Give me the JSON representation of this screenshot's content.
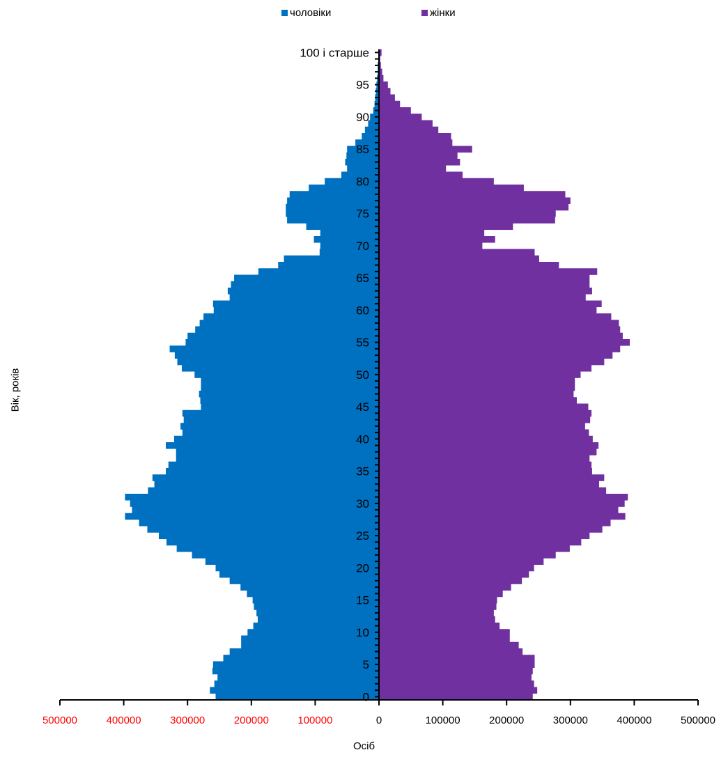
{
  "chart_data": {
    "type": "bar",
    "orientation": "horizontal-population-pyramid",
    "legend": [
      {
        "name": "чоловіки",
        "color": "#0070C0"
      },
      {
        "name": "жінки",
        "color": "#7030A0"
      }
    ],
    "legend_position": "top",
    "xlabel": "Осіб",
    "ylabel": "Вік, років",
    "xlim": [
      -500000,
      500000
    ],
    "x_ticks": [
      -500000,
      -400000,
      -300000,
      -200000,
      -100000,
      0,
      100000,
      200000,
      300000,
      400000,
      500000
    ],
    "x_tick_labels": [
      "500000",
      "400000",
      "300000",
      "200000",
      "100000",
      "0",
      "100000",
      "200000",
      "300000",
      "400000",
      "500000"
    ],
    "negative_tick_color": "#FF0000",
    "y_ticks": [
      0,
      5,
      10,
      15,
      20,
      25,
      30,
      35,
      40,
      45,
      50,
      55,
      60,
      65,
      70,
      75,
      80,
      85,
      90,
      95,
      100
    ],
    "y_tick_labels": [
      "0",
      "5",
      "10",
      "15",
      "20",
      "25",
      "30",
      "35",
      "40",
      "45",
      "50",
      "55",
      "60",
      "65",
      "70",
      "75",
      "80",
      "85",
      "90",
      "95",
      "100 і старше"
    ],
    "categories": [
      0,
      1,
      2,
      3,
      4,
      5,
      6,
      7,
      8,
      9,
      10,
      11,
      12,
      13,
      14,
      15,
      16,
      17,
      18,
      19,
      20,
      21,
      22,
      23,
      24,
      25,
      26,
      27,
      28,
      29,
      30,
      31,
      32,
      33,
      34,
      35,
      36,
      37,
      38,
      39,
      40,
      41,
      42,
      43,
      44,
      45,
      46,
      47,
      48,
      49,
      50,
      51,
      52,
      53,
      54,
      55,
      56,
      57,
      58,
      59,
      60,
      61,
      62,
      63,
      64,
      65,
      66,
      67,
      68,
      69,
      70,
      71,
      72,
      73,
      74,
      75,
      76,
      77,
      78,
      79,
      80,
      81,
      82,
      83,
      84,
      85,
      86,
      87,
      88,
      89,
      90,
      91,
      92,
      93,
      94,
      95,
      96,
      97,
      98,
      99,
      100
    ],
    "series": [
      {
        "name": "чоловіки",
        "values": [
          256000,
          265000,
          258000,
          253000,
          261000,
          260000,
          244000,
          234000,
          216000,
          216000,
          206000,
          197000,
          190000,
          192000,
          196000,
          198000,
          207000,
          217000,
          234000,
          250000,
          256000,
          272000,
          293000,
          317000,
          333000,
          345000,
          363000,
          376000,
          398000,
          387000,
          390000,
          398000,
          362000,
          352000,
          355000,
          334000,
          330000,
          318000,
          318000,
          334000,
          321000,
          308000,
          311000,
          306000,
          308000,
          279000,
          280000,
          282000,
          279000,
          279000,
          289000,
          309000,
          316000,
          320000,
          328000,
          303000,
          300000,
          288000,
          281000,
          275000,
          259000,
          260000,
          234000,
          237000,
          232000,
          227000,
          189000,
          158000,
          149000,
          93000,
          92000,
          102000,
          92000,
          114000,
          144000,
          146000,
          146000,
          144000,
          140000,
          110000,
          85000,
          59000,
          50000,
          53000,
          51000,
          50000,
          37000,
          27000,
          22000,
          17000,
          14000,
          9000,
          7000,
          6000,
          5000,
          4000,
          3000,
          2000,
          2000,
          1000,
          1000
        ]
      },
      {
        "name": "жінки",
        "values": [
          241000,
          248000,
          243000,
          239000,
          241000,
          244000,
          244000,
          225000,
          219000,
          205000,
          205000,
          189000,
          182000,
          180000,
          184000,
          185000,
          194000,
          207000,
          224000,
          235000,
          243000,
          258000,
          277000,
          299000,
          317000,
          330000,
          350000,
          363000,
          386000,
          375000,
          385000,
          390000,
          356000,
          345000,
          353000,
          334000,
          333000,
          330000,
          341000,
          344000,
          335000,
          329000,
          323000,
          331000,
          333000,
          328000,
          310000,
          305000,
          307000,
          307000,
          316000,
          333000,
          353000,
          366000,
          378000,
          393000,
          382000,
          378000,
          376000,
          364000,
          341000,
          349000,
          324000,
          334000,
          330000,
          330000,
          342000,
          282000,
          251000,
          244000,
          162000,
          182000,
          165000,
          210000,
          276000,
          277000,
          297000,
          300000,
          292000,
          227000,
          180000,
          131000,
          105000,
          127000,
          123000,
          146000,
          115000,
          113000,
          93000,
          84000,
          67000,
          50000,
          33000,
          25000,
          18000,
          14000,
          7000,
          5000,
          3000,
          2000,
          4000
        ]
      }
    ]
  }
}
